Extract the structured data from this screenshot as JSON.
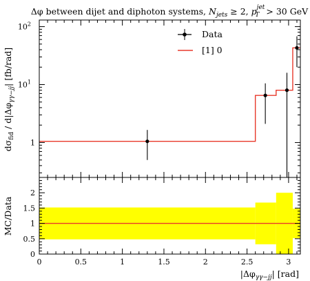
{
  "chart_data": [
    {
      "type": "line",
      "title": "Δφ between dijet and diphoton systems, N_jets ≥ 2, p_T^jet > 30 GeV",
      "title_parts": {
        "lead": "Δφ between dijet and diphoton systems,",
        "njets_sym": "N",
        "njets_sub": "jets",
        "njets_rel": "≥ 2,",
        "pt_sym": "p",
        "pt_sub": "T",
        "pt_sup": "jet",
        "pt_rel": "> 30 GeV"
      },
      "ylabel": "dσ_fid / d|Δφ_γγ−jj| [fb/rad]",
      "ylabel_parts": {
        "a": "dσ",
        "a_sub": "fid",
        "b": " / d|Δφ",
        "b_sub": "γγ−jj",
        "c": "| [fb/rad]"
      },
      "yscale": "log",
      "ylim": [
        0.25,
        130
      ],
      "xlim": [
        0,
        3.1416
      ],
      "yticks": [
        {
          "value": 1,
          "label": "1"
        },
        {
          "value": 10,
          "label": "10",
          "exp": "1"
        },
        {
          "value": 100,
          "label": "10",
          "exp": "2"
        }
      ],
      "legend": {
        "position": "top-center",
        "entries": [
          {
            "label": "Data",
            "style": "marker",
            "color": "#000000"
          },
          {
            "label": "[1] 0",
            "style": "line",
            "color": "#e8392b"
          }
        ]
      },
      "series": [
        {
          "name": "Data",
          "style": "points",
          "color": "#000000",
          "points": [
            {
              "x": 1.3,
              "y": 1.05,
              "ylo": 0.5,
              "yhi": 1.65
            },
            {
              "x": 2.72,
              "y": 6.5,
              "ylo": 2.1,
              "yhi": 10.5
            },
            {
              "x": 2.98,
              "y": 8.0,
              "ylo": 0.0,
              "yhi": 16.0
            },
            {
              "x": 3.1,
              "y": 43.0,
              "ylo": 20.0,
              "yhi": 68.0
            }
          ]
        },
        {
          "name": "[1] 0",
          "style": "step",
          "color": "#e8392b",
          "bins": [
            {
              "x0": 0.0,
              "x1": 2.6,
              "y": 1.05
            },
            {
              "x0": 2.6,
              "x1": 2.85,
              "y": 6.5
            },
            {
              "x0": 2.85,
              "x1": 3.05,
              "y": 8.0
            },
            {
              "x0": 3.05,
              "x1": 3.1416,
              "y": 43.0
            }
          ]
        }
      ]
    },
    {
      "type": "area",
      "ylabel": "MC/Data",
      "xlabel": "|Δφ_γγ−jj| [rad]",
      "xlabel_parts": {
        "a": "|Δφ",
        "a_sub": "γγ−jj",
        "b": "| [rad]"
      },
      "xlim": [
        0,
        3.1416
      ],
      "ylim": [
        0,
        2.5
      ],
      "xticks": [
        "0",
        "0.5",
        "1",
        "1.5",
        "2",
        "2.5",
        "3"
      ],
      "xtick_values": [
        0,
        0.5,
        1,
        1.5,
        2,
        2.5,
        3
      ],
      "yticks": [
        "0",
        "0.5",
        "1",
        "1.5",
        "2"
      ],
      "ytick_values": [
        0,
        0.5,
        1,
        1.5,
        2
      ],
      "band_color": "#ffff00",
      "line_color": "#e8392b",
      "band": [
        {
          "x0": 0.0,
          "x1": 2.6,
          "lo": 0.48,
          "hi": 1.52
        },
        {
          "x0": 2.6,
          "x1": 2.85,
          "lo": 0.32,
          "hi": 1.68
        },
        {
          "x0": 2.85,
          "x1": 3.05,
          "lo": 0.0,
          "hi": 2.0
        },
        {
          "x0": 3.05,
          "x1": 3.1416,
          "lo": 0.52,
          "hi": 1.48
        }
      ],
      "ratio": [
        {
          "x0": 0.0,
          "x1": 3.1416,
          "y": 1.0
        }
      ]
    }
  ]
}
